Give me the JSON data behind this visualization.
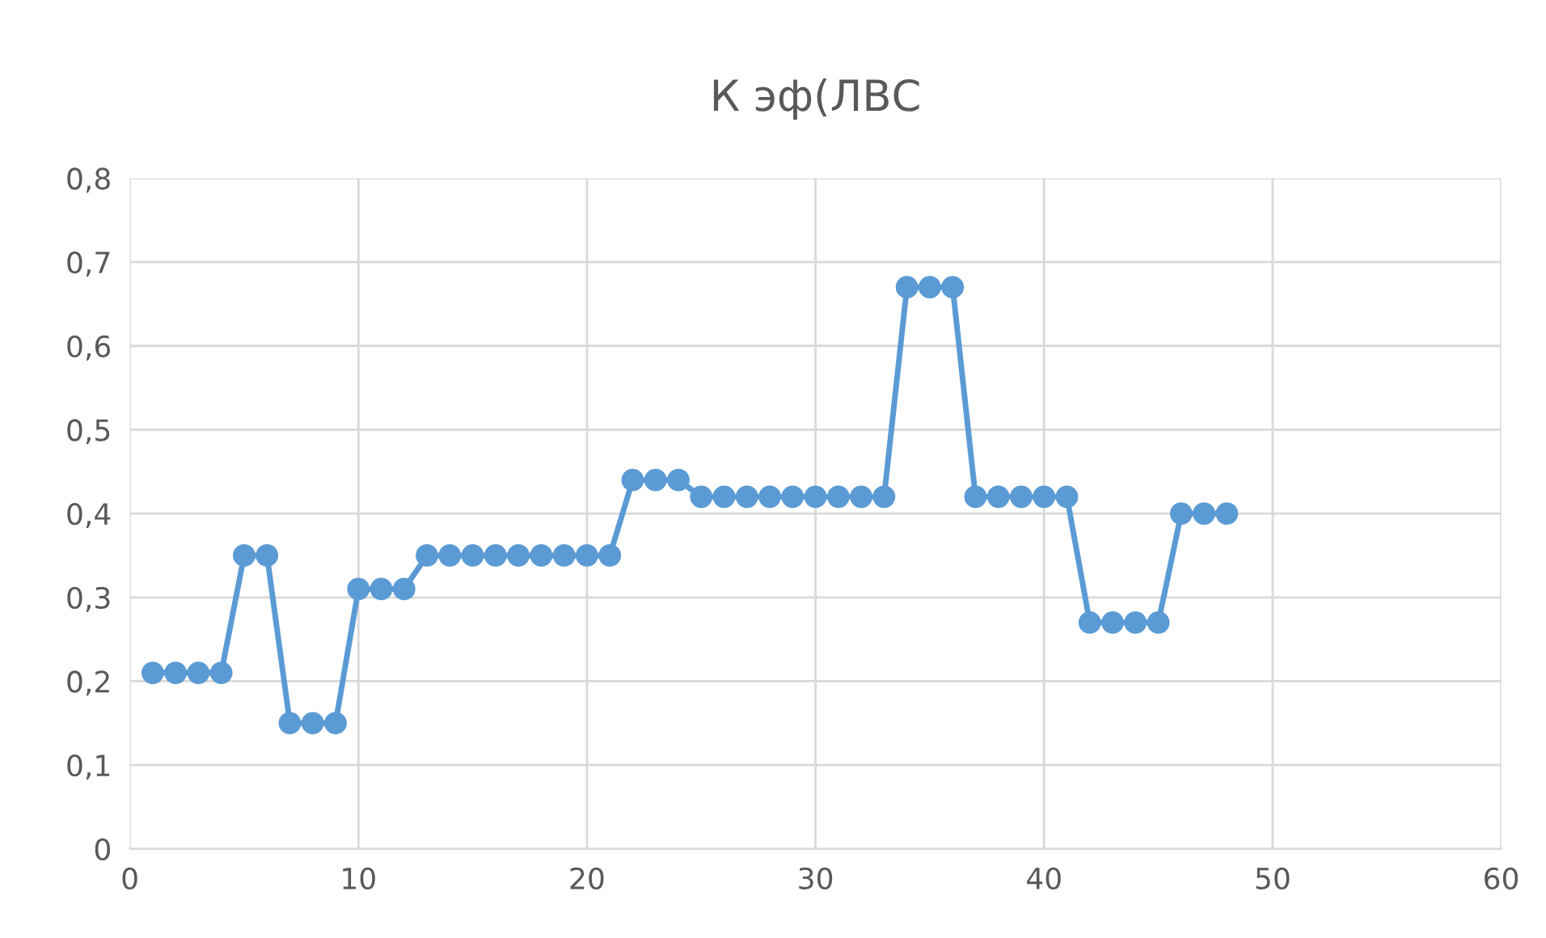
{
  "chart_data": {
    "type": "line",
    "title": "К эф(ЛВС",
    "x": [
      1,
      2,
      3,
      4,
      5,
      6,
      7,
      8,
      9,
      10,
      11,
      12,
      13,
      14,
      15,
      16,
      17,
      18,
      19,
      20,
      21,
      22,
      23,
      24,
      25,
      26,
      27,
      28,
      29,
      30,
      31,
      32,
      33,
      34,
      35,
      36,
      37,
      38,
      39,
      40,
      41,
      42,
      43,
      44,
      45,
      46,
      47,
      48
    ],
    "series": [
      {
        "color": "#5b9bd5",
        "values": [
          0.21,
          0.21,
          0.21,
          0.21,
          0.35,
          0.35,
          0.15,
          0.15,
          0.15,
          0.31,
          0.31,
          0.31,
          0.35,
          0.35,
          0.35,
          0.35,
          0.35,
          0.35,
          0.35,
          0.35,
          0.35,
          0.44,
          0.44,
          0.44,
          0.42,
          0.42,
          0.42,
          0.42,
          0.42,
          0.42,
          0.42,
          0.42,
          0.42,
          0.67,
          0.67,
          0.67,
          0.42,
          0.42,
          0.42,
          0.42,
          0.42,
          0.27,
          0.27,
          0.27,
          0.27,
          0.4,
          0.4,
          0.4
        ]
      }
    ],
    "xlim": [
      0,
      60
    ],
    "xticks": [
      0,
      10,
      20,
      30,
      40,
      50,
      60
    ],
    "ylim": [
      0,
      0.8
    ],
    "yticks": [
      0,
      {
        "value": 0.1,
        "label": "0,1"
      },
      {
        "value": 0.2,
        "label": "0,2"
      },
      {
        "value": 0.3,
        "label": "0,3"
      },
      {
        "value": 0.4,
        "label": "0,4"
      },
      {
        "value": 0.5,
        "label": "0,5"
      },
      {
        "value": 0.6,
        "label": "0,6"
      },
      {
        "value": 0.7,
        "label": "0,7"
      },
      {
        "value": 0.8,
        "label": "0,8"
      }
    ],
    "grid": true,
    "marker": "circle",
    "line_style": "solid",
    "legend": false
  }
}
